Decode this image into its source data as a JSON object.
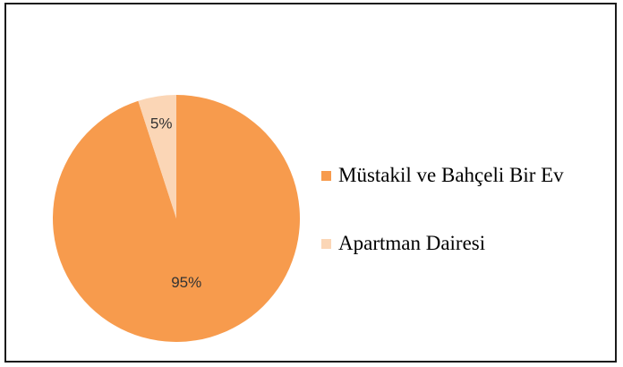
{
  "chart_data": {
    "type": "pie",
    "title": "",
    "categories": [
      "Müstakil ve Bahçeli Bir Ev",
      "Apartman Dairesi"
    ],
    "values": [
      95,
      5
    ],
    "value_labels": [
      "95%",
      "5%"
    ],
    "colors": [
      "#F79B4D",
      "#FBD6B6"
    ],
    "legend_position": "right"
  }
}
